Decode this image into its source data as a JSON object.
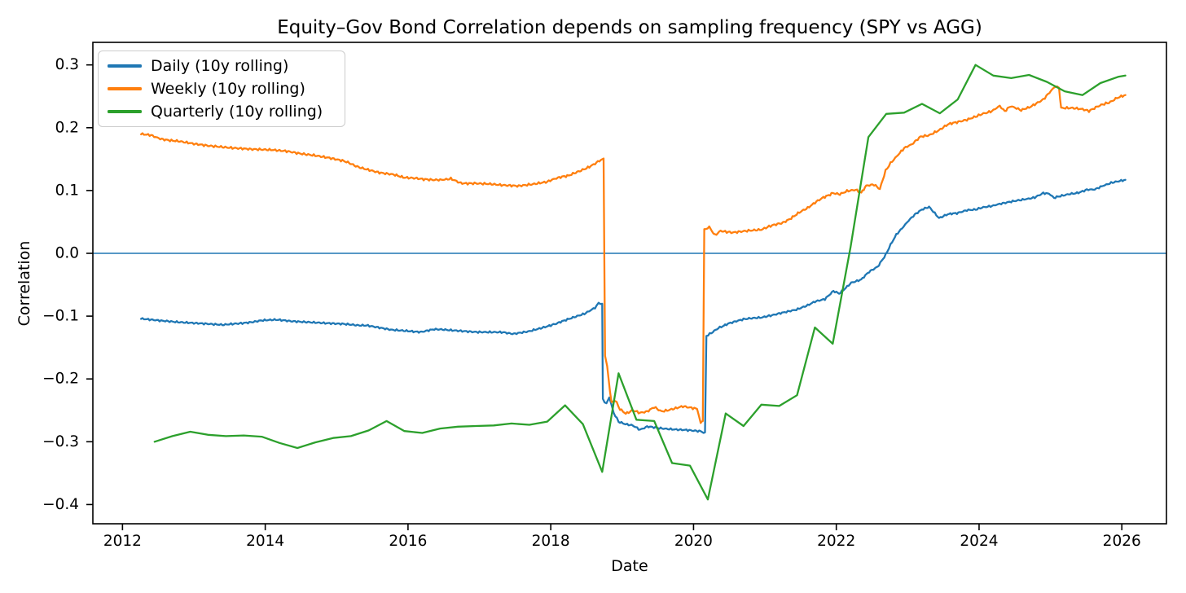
{
  "chart_data": {
    "type": "line",
    "title": "Equity–Gov Bond Correlation depends on sampling frequency (SPY vs AGG)",
    "xlabel": "Date",
    "ylabel": "Correlation",
    "xlim": [
      2011.585,
      2026.625
    ],
    "ylim": [
      -0.4306,
      0.3359
    ],
    "grid": false,
    "legend_position": "upper-left",
    "xticks": [
      {
        "value": 2012,
        "label": "2012"
      },
      {
        "value": 2014,
        "label": "2014"
      },
      {
        "value": 2016,
        "label": "2016"
      },
      {
        "value": 2018,
        "label": "2018"
      },
      {
        "value": 2020,
        "label": "2020"
      },
      {
        "value": 2022,
        "label": "2022"
      },
      {
        "value": 2024,
        "label": "2024"
      },
      {
        "value": 2026,
        "label": "2026"
      }
    ],
    "yticks": [
      {
        "value": 0.3,
        "label": "0.3"
      },
      {
        "value": 0.2,
        "label": "0.2"
      },
      {
        "value": 0.1,
        "label": "0.1"
      },
      {
        "value": 0.0,
        "label": "0.0"
      },
      {
        "value": -0.1,
        "label": "−0.1"
      },
      {
        "value": -0.2,
        "label": "−0.2"
      },
      {
        "value": -0.3,
        "label": "−0.3"
      },
      {
        "value": -0.4,
        "label": "−0.4"
      }
    ],
    "zero_line": {
      "y": 0,
      "color": "#1f77b4"
    },
    "series": [
      {
        "id": "daily",
        "name": "Daily (10y rolling)",
        "color": "#1f77b4",
        "jitter": 0.0018,
        "points": [
          [
            2012.26,
            -0.104
          ],
          [
            2012.5,
            -0.107
          ],
          [
            2012.8,
            -0.11
          ],
          [
            2013.1,
            -0.112
          ],
          [
            2013.4,
            -0.114
          ],
          [
            2013.7,
            -0.111
          ],
          [
            2013.95,
            -0.107
          ],
          [
            2014.15,
            -0.106
          ],
          [
            2014.4,
            -0.108
          ],
          [
            2014.7,
            -0.11
          ],
          [
            2015.0,
            -0.112
          ],
          [
            2015.25,
            -0.114
          ],
          [
            2015.42,
            -0.115
          ],
          [
            2015.76,
            -0.122
          ],
          [
            2016.0,
            -0.124
          ],
          [
            2016.19,
            -0.125
          ],
          [
            2016.35,
            -0.121
          ],
          [
            2016.56,
            -0.122
          ],
          [
            2016.94,
            -0.125
          ],
          [
            2017.33,
            -0.126
          ],
          [
            2017.48,
            -0.128
          ],
          [
            2017.7,
            -0.124
          ],
          [
            2017.9,
            -0.118
          ],
          [
            2018.08,
            -0.112
          ],
          [
            2018.31,
            -0.102
          ],
          [
            2018.47,
            -0.096
          ],
          [
            2018.62,
            -0.087
          ],
          [
            2018.67,
            -0.079
          ],
          [
            2018.72,
            -0.081
          ],
          [
            2018.73,
            -0.232
          ],
          [
            2018.78,
            -0.24
          ],
          [
            2018.82,
            -0.229
          ],
          [
            2018.88,
            -0.254
          ],
          [
            2018.95,
            -0.268
          ],
          [
            2019.05,
            -0.272
          ],
          [
            2019.15,
            -0.274
          ],
          [
            2019.25,
            -0.281
          ],
          [
            2019.35,
            -0.276
          ],
          [
            2019.5,
            -0.278
          ],
          [
            2019.7,
            -0.28
          ],
          [
            2019.9,
            -0.281
          ],
          [
            2020.0,
            -0.282
          ],
          [
            2020.1,
            -0.283
          ],
          [
            2020.16,
            -0.286
          ],
          [
            2020.18,
            -0.131
          ],
          [
            2020.25,
            -0.127
          ],
          [
            2020.35,
            -0.119
          ],
          [
            2020.48,
            -0.112
          ],
          [
            2020.6,
            -0.108
          ],
          [
            2020.7,
            -0.105
          ],
          [
            2020.95,
            -0.102
          ],
          [
            2021.1,
            -0.099
          ],
          [
            2021.2,
            -0.096
          ],
          [
            2021.44,
            -0.09
          ],
          [
            2021.6,
            -0.083
          ],
          [
            2021.7,
            -0.077
          ],
          [
            2021.84,
            -0.073
          ],
          [
            2021.96,
            -0.06
          ],
          [
            2022.04,
            -0.064
          ],
          [
            2022.21,
            -0.047
          ],
          [
            2022.35,
            -0.042
          ],
          [
            2022.46,
            -0.029
          ],
          [
            2022.58,
            -0.021
          ],
          [
            2022.69,
            -0.003
          ],
          [
            2022.76,
            0.014
          ],
          [
            2022.84,
            0.03
          ],
          [
            2022.92,
            0.04
          ],
          [
            2022.99,
            0.049
          ],
          [
            2023.1,
            0.062
          ],
          [
            2023.2,
            0.07
          ],
          [
            2023.3,
            0.074
          ],
          [
            2023.44,
            0.056
          ],
          [
            2023.56,
            0.062
          ],
          [
            2023.69,
            0.064
          ],
          [
            2023.83,
            0.069
          ],
          [
            2023.95,
            0.07
          ],
          [
            2024.06,
            0.073
          ],
          [
            2024.18,
            0.075
          ],
          [
            2024.29,
            0.079
          ],
          [
            2024.47,
            0.083
          ],
          [
            2024.63,
            0.086
          ],
          [
            2024.78,
            0.089
          ],
          [
            2024.9,
            0.096
          ],
          [
            2024.98,
            0.095
          ],
          [
            2025.05,
            0.088
          ],
          [
            2025.16,
            0.092
          ],
          [
            2025.28,
            0.095
          ],
          [
            2025.39,
            0.096
          ],
          [
            2025.51,
            0.101
          ],
          [
            2025.62,
            0.102
          ],
          [
            2025.74,
            0.108
          ],
          [
            2025.85,
            0.112
          ],
          [
            2025.97,
            0.115
          ],
          [
            2026.05,
            0.117
          ]
        ]
      },
      {
        "id": "weekly",
        "name": "Weekly (10y rolling)",
        "color": "#ff7f0e",
        "jitter": 0.0022,
        "points": [
          [
            2012.26,
            0.19
          ],
          [
            2012.4,
            0.188
          ],
          [
            2012.55,
            0.182
          ],
          [
            2012.8,
            0.178
          ],
          [
            2013.0,
            0.174
          ],
          [
            2013.2,
            0.171
          ],
          [
            2013.5,
            0.168
          ],
          [
            2013.8,
            0.166
          ],
          [
            2014.1,
            0.165
          ],
          [
            2014.3,
            0.163
          ],
          [
            2014.5,
            0.159
          ],
          [
            2014.7,
            0.156
          ],
          [
            2014.9,
            0.152
          ],
          [
            2015.1,
            0.147
          ],
          [
            2015.25,
            0.14
          ],
          [
            2015.4,
            0.134
          ],
          [
            2015.6,
            0.128
          ],
          [
            2015.8,
            0.125
          ],
          [
            2015.95,
            0.121
          ],
          [
            2016.2,
            0.118
          ],
          [
            2016.45,
            0.117
          ],
          [
            2016.6,
            0.119
          ],
          [
            2016.74,
            0.112
          ],
          [
            2016.95,
            0.111
          ],
          [
            2017.15,
            0.11
          ],
          [
            2017.35,
            0.108
          ],
          [
            2017.55,
            0.107
          ],
          [
            2017.75,
            0.11
          ],
          [
            2017.95,
            0.114
          ],
          [
            2018.1,
            0.12
          ],
          [
            2018.25,
            0.124
          ],
          [
            2018.35,
            0.129
          ],
          [
            2018.5,
            0.135
          ],
          [
            2018.6,
            0.141
          ],
          [
            2018.68,
            0.147
          ],
          [
            2018.74,
            0.15
          ],
          [
            2018.76,
            -0.162
          ],
          [
            2018.79,
            -0.18
          ],
          [
            2018.85,
            -0.238
          ],
          [
            2018.9,
            -0.234
          ],
          [
            2018.97,
            -0.248
          ],
          [
            2019.05,
            -0.255
          ],
          [
            2019.15,
            -0.25
          ],
          [
            2019.25,
            -0.254
          ],
          [
            2019.35,
            -0.252
          ],
          [
            2019.45,
            -0.245
          ],
          [
            2019.55,
            -0.252
          ],
          [
            2019.65,
            -0.25
          ],
          [
            2019.75,
            -0.247
          ],
          [
            2019.85,
            -0.244
          ],
          [
            2019.95,
            -0.246
          ],
          [
            2020.05,
            -0.248
          ],
          [
            2020.1,
            -0.27
          ],
          [
            2020.13,
            -0.266
          ],
          [
            2020.15,
            0.037
          ],
          [
            2020.22,
            0.042
          ],
          [
            2020.3,
            0.029
          ],
          [
            2020.38,
            0.036
          ],
          [
            2020.55,
            0.033
          ],
          [
            2020.75,
            0.036
          ],
          [
            2020.95,
            0.038
          ],
          [
            2021.1,
            0.044
          ],
          [
            2021.25,
            0.049
          ],
          [
            2021.35,
            0.055
          ],
          [
            2021.5,
            0.066
          ],
          [
            2021.6,
            0.072
          ],
          [
            2021.72,
            0.082
          ],
          [
            2021.82,
            0.089
          ],
          [
            2021.95,
            0.096
          ],
          [
            2022.05,
            0.094
          ],
          [
            2022.15,
            0.099
          ],
          [
            2022.27,
            0.101
          ],
          [
            2022.35,
            0.096
          ],
          [
            2022.42,
            0.108
          ],
          [
            2022.53,
            0.109
          ],
          [
            2022.61,
            0.102
          ],
          [
            2022.69,
            0.131
          ],
          [
            2022.76,
            0.144
          ],
          [
            2022.87,
            0.157
          ],
          [
            2022.95,
            0.167
          ],
          [
            2023.06,
            0.174
          ],
          [
            2023.18,
            0.186
          ],
          [
            2023.3,
            0.188
          ],
          [
            2023.44,
            0.196
          ],
          [
            2023.56,
            0.205
          ],
          [
            2023.69,
            0.209
          ],
          [
            2023.83,
            0.213
          ],
          [
            2023.95,
            0.218
          ],
          [
            2024.06,
            0.222
          ],
          [
            2024.18,
            0.226
          ],
          [
            2024.29,
            0.235
          ],
          [
            2024.36,
            0.226
          ],
          [
            2024.44,
            0.234
          ],
          [
            2024.59,
            0.228
          ],
          [
            2024.7,
            0.232
          ],
          [
            2024.9,
            0.245
          ],
          [
            2025.07,
            0.266
          ],
          [
            2025.12,
            0.264
          ],
          [
            2025.15,
            0.231
          ],
          [
            2025.31,
            0.231
          ],
          [
            2025.45,
            0.229
          ],
          [
            2025.54,
            0.227
          ],
          [
            2025.69,
            0.235
          ],
          [
            2025.84,
            0.241
          ],
          [
            2025.95,
            0.248
          ],
          [
            2026.05,
            0.252
          ]
        ]
      },
      {
        "id": "quarterly",
        "name": "Quarterly (10y rolling)",
        "color": "#2ca02c",
        "jitter": 0,
        "points": [
          [
            2012.45,
            -0.3
          ],
          [
            2012.7,
            -0.291
          ],
          [
            2012.95,
            -0.284
          ],
          [
            2013.2,
            -0.289
          ],
          [
            2013.45,
            -0.291
          ],
          [
            2013.7,
            -0.29
          ],
          [
            2013.95,
            -0.292
          ],
          [
            2014.2,
            -0.302
          ],
          [
            2014.45,
            -0.31
          ],
          [
            2014.7,
            -0.301
          ],
          [
            2014.95,
            -0.294
          ],
          [
            2015.2,
            -0.291
          ],
          [
            2015.45,
            -0.282
          ],
          [
            2015.7,
            -0.267
          ],
          [
            2015.95,
            -0.283
          ],
          [
            2016.2,
            -0.286
          ],
          [
            2016.45,
            -0.279
          ],
          [
            2016.7,
            -0.276
          ],
          [
            2016.95,
            -0.275
          ],
          [
            2017.2,
            -0.274
          ],
          [
            2017.45,
            -0.271
          ],
          [
            2017.7,
            -0.273
          ],
          [
            2017.95,
            -0.268
          ],
          [
            2018.2,
            -0.242
          ],
          [
            2018.45,
            -0.272
          ],
          [
            2018.72,
            -0.348
          ],
          [
            2018.95,
            -0.191
          ],
          [
            2019.2,
            -0.265
          ],
          [
            2019.45,
            -0.267
          ],
          [
            2019.7,
            -0.334
          ],
          [
            2019.95,
            -0.338
          ],
          [
            2020.2,
            -0.392
          ],
          [
            2020.45,
            -0.255
          ],
          [
            2020.7,
            -0.275
          ],
          [
            2020.95,
            -0.241
          ],
          [
            2021.2,
            -0.243
          ],
          [
            2021.45,
            -0.226
          ],
          [
            2021.7,
            -0.118
          ],
          [
            2021.95,
            -0.144
          ],
          [
            2022.2,
            0.01
          ],
          [
            2022.45,
            0.185
          ],
          [
            2022.7,
            0.222
          ],
          [
            2022.95,
            0.224
          ],
          [
            2023.2,
            0.238
          ],
          [
            2023.45,
            0.223
          ],
          [
            2023.7,
            0.245
          ],
          [
            2023.95,
            0.3
          ],
          [
            2024.2,
            0.283
          ],
          [
            2024.45,
            0.279
          ],
          [
            2024.7,
            0.284
          ],
          [
            2024.95,
            0.273
          ],
          [
            2025.2,
            0.258
          ],
          [
            2025.45,
            0.252
          ],
          [
            2025.7,
            0.271
          ],
          [
            2025.95,
            0.281
          ],
          [
            2026.05,
            0.283
          ]
        ]
      }
    ]
  }
}
